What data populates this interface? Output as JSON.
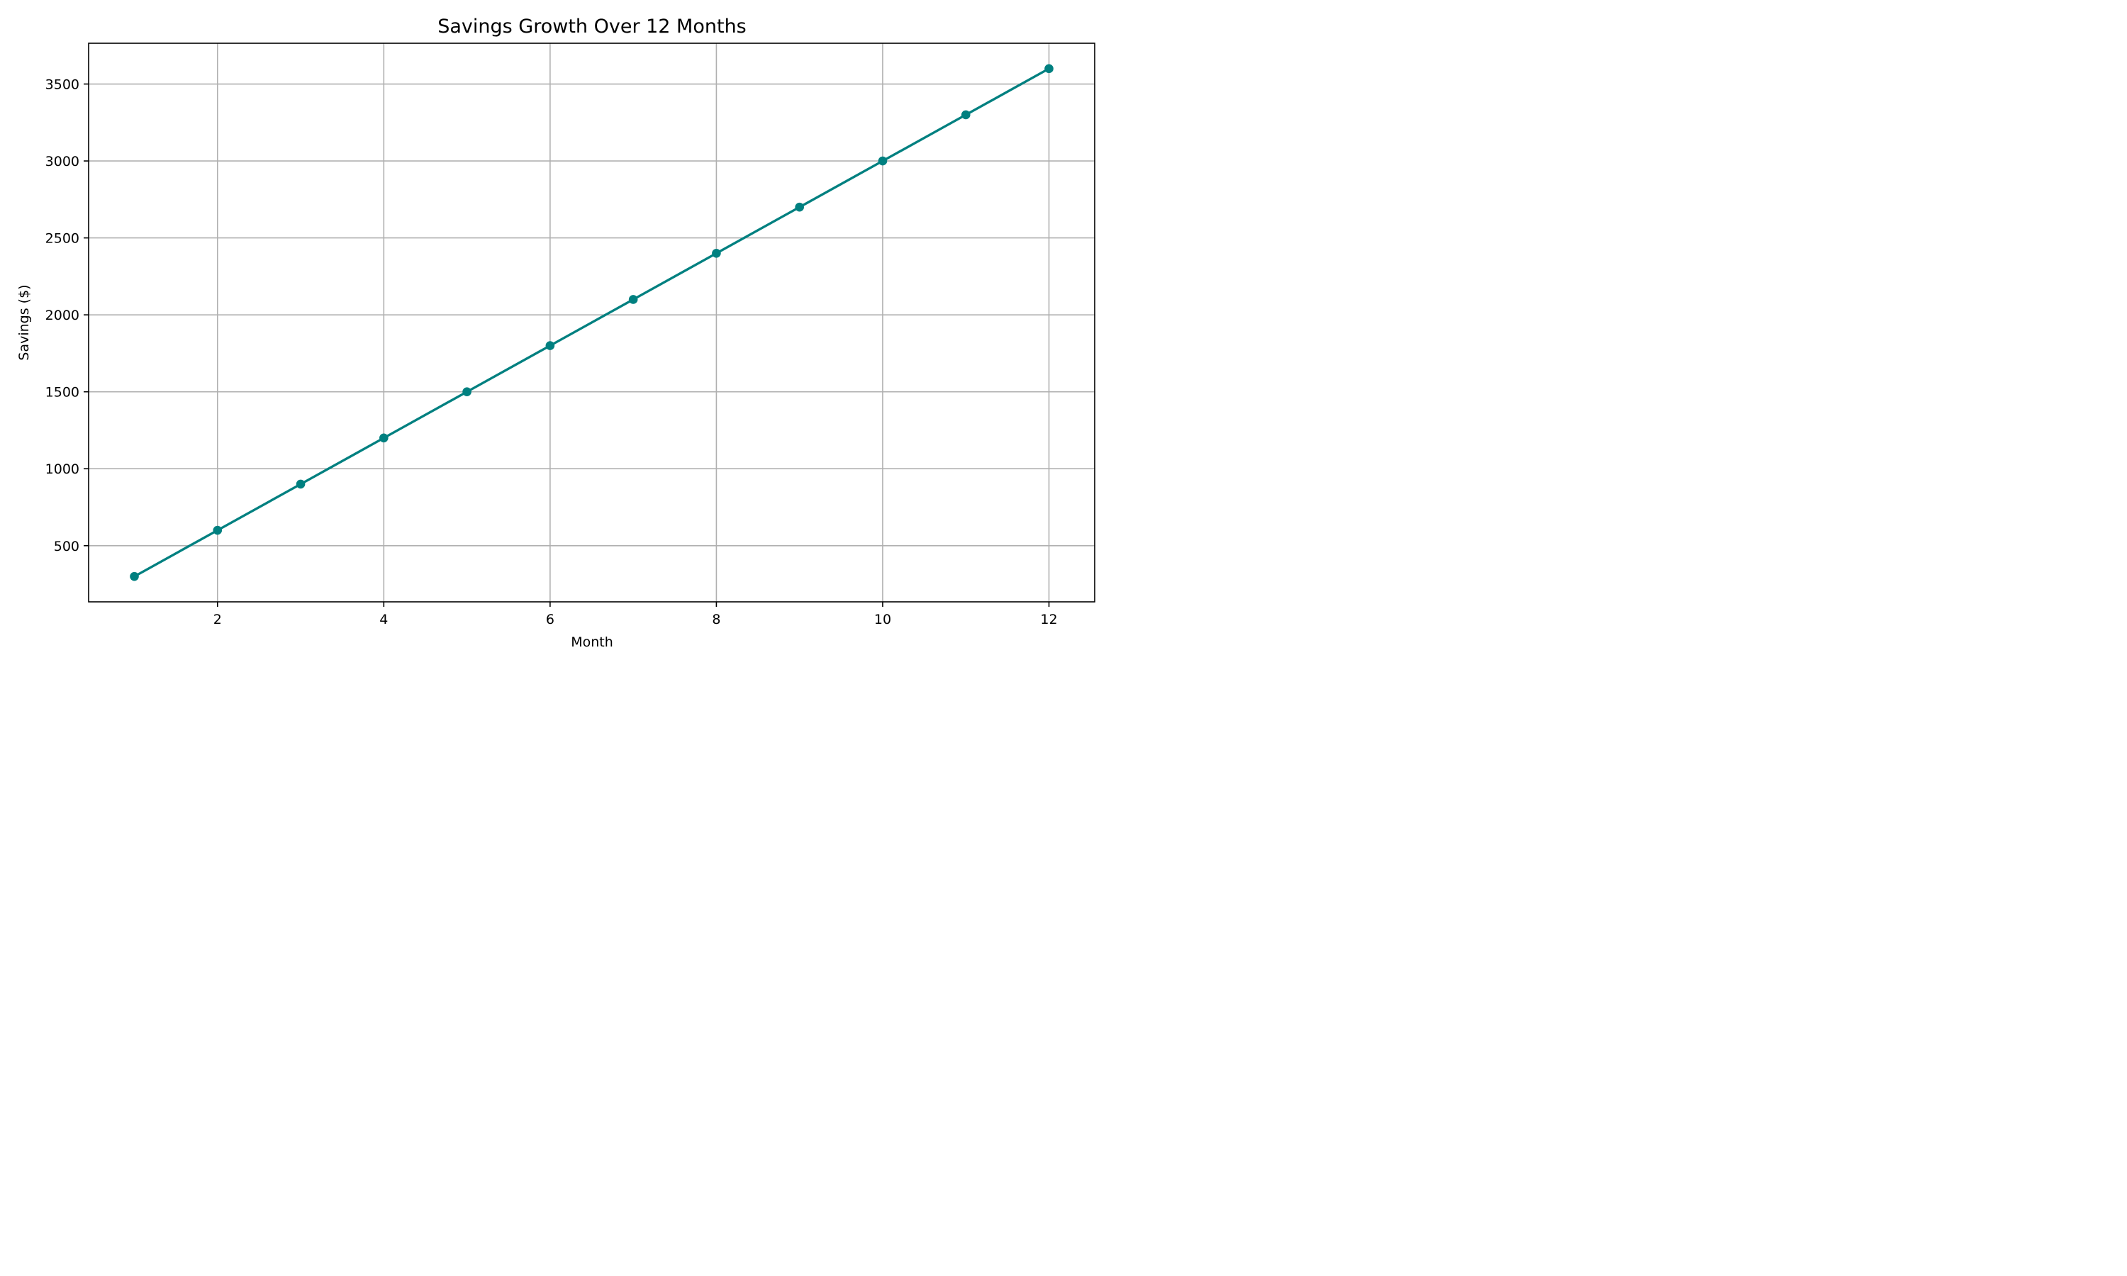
{
  "chart_data": {
    "type": "line",
    "title": "Savings Growth Over 12 Months",
    "xlabel": "Month",
    "ylabel": "Savings ($)",
    "x": [
      1,
      2,
      3,
      4,
      5,
      6,
      7,
      8,
      9,
      10,
      11,
      12
    ],
    "series": [
      {
        "values": [
          300,
          600,
          900,
          1200,
          1500,
          1800,
          2100,
          2400,
          2700,
          3000,
          3300,
          3600
        ],
        "color": "#008080",
        "marker": "circle"
      }
    ],
    "xlim": [
      0.45,
      12.55
    ],
    "ylim": [
      135,
      3765
    ],
    "xticks": [
      2,
      4,
      6,
      8,
      10,
      12
    ],
    "xtick_labels": [
      "2",
      "4",
      "6",
      "8",
      "10",
      "12"
    ],
    "yticks": [
      500,
      1000,
      1500,
      2000,
      2500,
      3000,
      3500
    ],
    "ytick_labels": [
      "500",
      "1000",
      "1500",
      "2000",
      "2500",
      "3000",
      "3500"
    ],
    "grid": true,
    "legend": "none"
  }
}
